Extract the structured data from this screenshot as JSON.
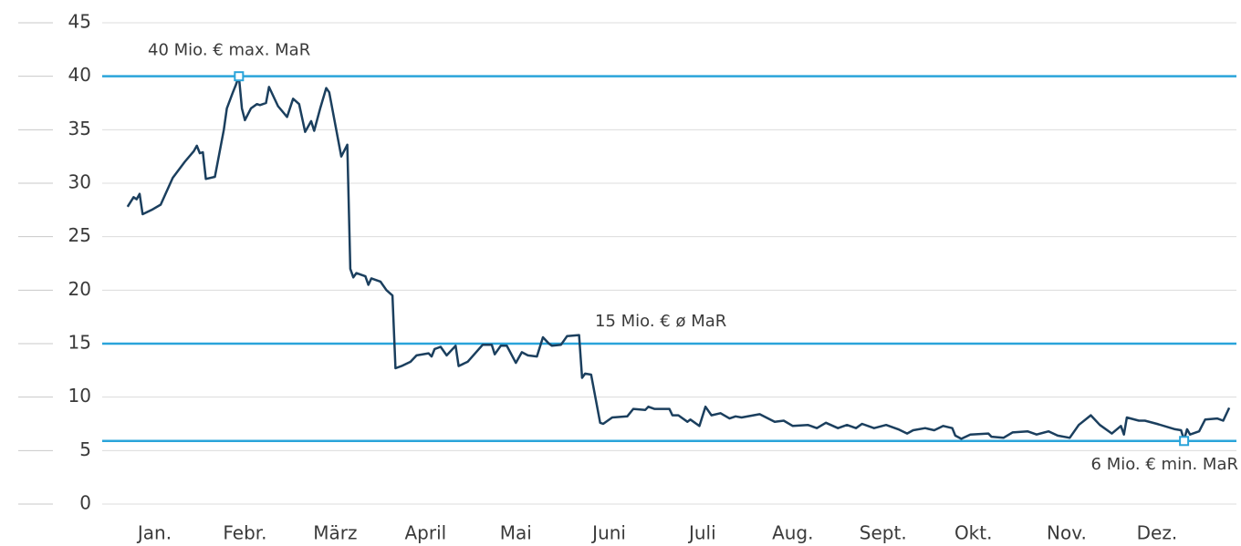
{
  "chart_data": {
    "type": "line",
    "x": [
      6,
      8,
      9,
      10,
      11,
      14,
      17,
      21,
      25,
      28,
      29,
      30,
      31,
      32,
      35,
      38,
      39,
      41,
      42,
      43,
      44,
      45,
      47,
      49,
      50,
      52,
      53,
      56,
      59,
      61,
      63,
      65,
      67,
      68,
      70,
      72,
      73,
      75,
      77,
      79,
      80,
      81,
      82,
      85,
      86,
      87,
      90,
      92,
      94,
      95,
      97,
      100,
      102,
      106,
      107,
      108,
      110,
      112,
      115,
      116,
      119,
      124,
      127,
      128,
      130,
      132,
      135,
      137,
      139,
      142,
      144,
      146,
      147,
      150,
      152,
      156,
      157,
      158,
      160,
      163,
      164,
      167,
      172,
      174,
      178,
      179,
      181,
      186,
      187,
      189,
      192,
      193,
      196,
      198,
      200,
      203,
      206,
      208,
      210,
      216,
      221,
      224,
      227,
      232,
      235,
      238,
      242,
      245,
      248,
      250,
      254,
      258,
      262,
      265,
      267,
      271,
      274,
      277,
      280,
      281,
      283,
      286,
      292,
      293,
      297,
      300,
      305,
      308,
      312,
      315,
      319,
      322,
      326,
      329,
      333,
      336,
      337,
      338,
      342,
      344,
      348,
      354,
      356,
      357,
      358,
      359,
      362,
      364,
      368,
      370,
      372
    ],
    "values": [
      27.8,
      28.7,
      28.5,
      29,
      27.1,
      27.5,
      28,
      30.5,
      32,
      33,
      33.5,
      32.8,
      32.9,
      30.4,
      30.6,
      35,
      37,
      38.5,
      39.2,
      40,
      37,
      35.9,
      37,
      37.4,
      37.3,
      37.5,
      39,
      37.2,
      36.2,
      37.9,
      37.4,
      34.8,
      35.8,
      34.9,
      37,
      38.9,
      38.5,
      35.5,
      32.5,
      33.6,
      22,
      21.2,
      21.6,
      21.3,
      20.5,
      21.1,
      20.8,
      20,
      19.5,
      12.7,
      12.9,
      13.3,
      13.9,
      14.1,
      13.8,
      14.5,
      14.7,
      13.9,
      14.8,
      12.9,
      13.3,
      14.9,
      14.9,
      14,
      14.8,
      14.8,
      13.2,
      14.2,
      13.9,
      13.8,
      15.6,
      15,
      14.8,
      14.9,
      15.7,
      15.8,
      11.8,
      12.2,
      12.1,
      7.6,
      7.5,
      8.1,
      8.2,
      8.9,
      8.8,
      9.1,
      8.9,
      8.9,
      8.3,
      8.3,
      7.7,
      7.9,
      7.3,
      9.1,
      8.3,
      8.5,
      8,
      8.2,
      8.1,
      8.4,
      7.7,
      7.8,
      7.3,
      7.4,
      7.1,
      7.6,
      7.1,
      7.4,
      7.1,
      7.5,
      7.1,
      7.4,
      7,
      6.6,
      6.9,
      7.1,
      6.9,
      7.3,
      7.1,
      6.4,
      6.1,
      6.5,
      6.6,
      6.3,
      6.2,
      6.7,
      6.8,
      6.5,
      6.8,
      6.4,
      6.2,
      7.4,
      8.3,
      7.4,
      6.6,
      7.3,
      6.5,
      8.1,
      7.8,
      7.8,
      7.5,
      7,
      6.9,
      6,
      7,
      6.5,
      6.8,
      7.9,
      8,
      7.8,
      9
    ],
    "color": "#1b3f5e",
    "xlim": [
      0,
      375
    ],
    "xticks": [
      {
        "value": 15,
        "label": "Jan."
      },
      {
        "value": 45,
        "label": "Febr."
      },
      {
        "value": 75,
        "label": "März"
      },
      {
        "value": 105,
        "label": "April"
      },
      {
        "value": 135,
        "label": "Mai"
      },
      {
        "value": 166,
        "label": "Juni"
      },
      {
        "value": 197,
        "label": "Juli"
      },
      {
        "value": 227,
        "label": "Aug."
      },
      {
        "value": 257,
        "label": "Sept."
      },
      {
        "value": 287,
        "label": "Okt."
      },
      {
        "value": 318,
        "label": "Nov."
      },
      {
        "value": 348,
        "label": "Dez."
      }
    ],
    "ylim": [
      0,
      45
    ],
    "yticks": [
      0,
      5,
      10,
      15,
      20,
      25,
      30,
      35,
      40,
      45
    ],
    "grid": true,
    "reference_color": "#2aa4da",
    "reference_lines": [
      {
        "value": 40,
        "label": "40 Mio. € max. MaR",
        "marker_x": 43
      },
      {
        "value": 15,
        "label": "15 Mio. € ø MaR"
      },
      {
        "value": 5.9,
        "label": "6 Mio. € min. MaR",
        "marker_x": 357
      }
    ]
  }
}
